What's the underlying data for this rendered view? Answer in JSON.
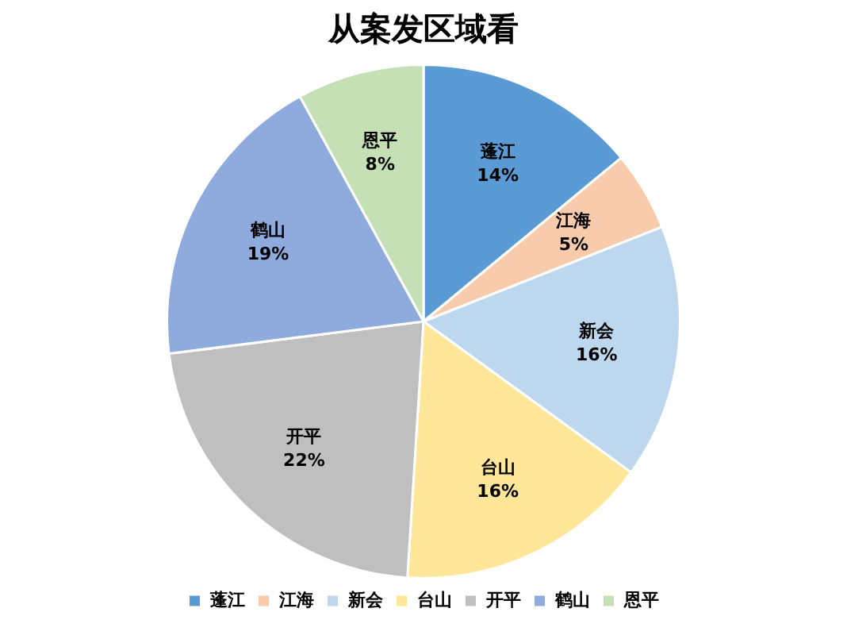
{
  "chart_data": {
    "type": "pie",
    "title": "从案发区域看",
    "categories": [
      "蓬江",
      "江海",
      "新会",
      "台山",
      "开平",
      "鹤山",
      "恩平"
    ],
    "values": [
      14,
      5,
      16,
      16,
      22,
      19,
      8
    ],
    "colors": [
      "#5b9bd5",
      "#f8cbad",
      "#bdd7ee",
      "#ffe699",
      "#bfbfbf",
      "#8faadc",
      "#c5e0b4"
    ],
    "value_labels": [
      "14%",
      "5%",
      "16%",
      "16%",
      "22%",
      "19%",
      "8%"
    ],
    "legend": "bottom"
  }
}
